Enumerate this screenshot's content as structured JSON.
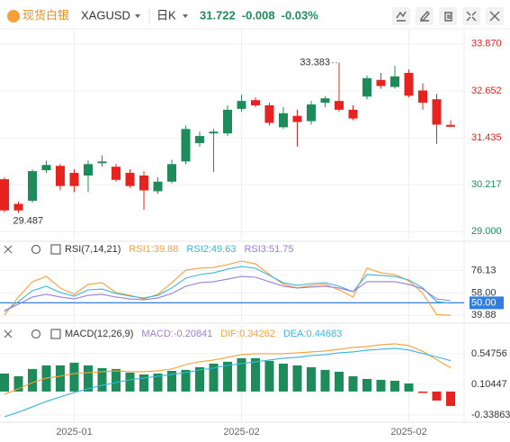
{
  "header": {
    "logo": "现货白银",
    "symbol": "XAGUSD",
    "period": "日K",
    "price": 31.722,
    "change": -0.008,
    "change_pct": "-0.03%"
  },
  "chart_data": [
    {
      "type": "candlestick",
      "categories": [
        null,
        null,
        null,
        null,
        null,
        "2025-01",
        null,
        null,
        null,
        null,
        null,
        null,
        null,
        null,
        null,
        null,
        null,
        "2025-02",
        null,
        null,
        null,
        null,
        null,
        null,
        null,
        null,
        null,
        null,
        null,
        "2025-02",
        null,
        null,
        null
      ],
      "open": [
        30.36,
        29.72,
        29.8,
        30.593,
        30.707,
        30.525,
        30.456,
        30.775,
        30.684,
        30.525,
        30.456,
        30.047,
        30.297,
        30.821,
        31.298,
        31.549,
        31.549,
        32.186,
        32.413,
        32.277,
        31.708,
        32.004,
        31.867,
        32.345,
        32.391,
        32.163,
        32.505,
        32.937,
        32.755,
        33.119,
        32.664,
        32.436,
        31.77
      ],
      "high": [
        30.41,
        29.78,
        30.616,
        30.843,
        30.752,
        30.616,
        30.843,
        30.98,
        30.752,
        30.616,
        30.57,
        30.411,
        30.866,
        31.754,
        31.594,
        31.663,
        32.277,
        32.55,
        32.482,
        32.345,
        32.231,
        32.163,
        32.391,
        32.505,
        33.383,
        32.277,
        33.051,
        33.119,
        33.301,
        33.21,
        32.846,
        32.573,
        31.89
      ],
      "low": [
        29.5,
        29.487,
        29.751,
        30.525,
        30.07,
        30.024,
        30.024,
        30.684,
        30.297,
        30.138,
        29.569,
        29.979,
        30.252,
        30.752,
        31.207,
        30.548,
        31.481,
        32.118,
        32.231,
        31.754,
        31.663,
        31.207,
        31.776,
        32.231,
        32.118,
        31.89,
        32.436,
        32.709,
        32.709,
        32.482,
        32.163,
        31.276,
        31.708
      ],
      "close": [
        29.55,
        29.55,
        30.57,
        30.73,
        30.183,
        30.183,
        30.752,
        30.82,
        30.343,
        30.183,
        30.07,
        30.297,
        30.752,
        31.663,
        31.481,
        31.594,
        32.163,
        32.391,
        32.277,
        31.822,
        32.072,
        31.845,
        32.3,
        32.459,
        32.163,
        31.936,
        32.982,
        32.778,
        33.028,
        32.527,
        32.345,
        31.776,
        31.722
      ],
      "up_color": "#1e8c5a",
      "down_color": "#e8231f",
      "ylim": [
        28.82,
        34.17
      ],
      "yticks": [
        {
          "value": 33.87,
          "label": "33.870"
        },
        32.652,
        31.435,
        30.217,
        {
          "value": 29,
          "label": "29.000"
        }
      ],
      "ytick_colors": [
        "#e8231f",
        "#e8231f",
        "#e8231f",
        "#1e8c5a",
        "#1e8c5a"
      ],
      "grid": true
    },
    {
      "type": "line",
      "title": "RSI(7,14,21)",
      "series": [
        {
          "name": "RSI1:39.88",
          "color": "#f5a03c",
          "values": [
            40.1,
            54.7,
            67.1,
            71.4,
            62.0,
            56.9,
            64.9,
            66.3,
            58.3,
            56.1,
            53.2,
            56.9,
            66.3,
            76.5,
            78.0,
            78.7,
            80.9,
            83.8,
            81.6,
            72.9,
            64.9,
            62.0,
            64.1,
            64.9,
            60.5,
            54.7,
            78.0,
            74.3,
            72.9,
            67.8,
            57.6,
            40.5,
            39.88
          ]
        },
        {
          "name": "RSI2:49.63",
          "color": "#3cb4dc",
          "values": [
            43.0,
            51.0,
            59.8,
            63.4,
            58.3,
            55.4,
            60.5,
            61.2,
            57.6,
            55.4,
            53.9,
            56.1,
            62.0,
            70.0,
            72.9,
            74.3,
            77.3,
            79.4,
            78.0,
            72.2,
            66.3,
            64.1,
            65.6,
            66.3,
            63.4,
            59.0,
            72.9,
            72.2,
            71.4,
            68.5,
            62.0,
            51.0,
            49.63
          ]
        },
        {
          "name": "RSI3:51.75",
          "color": "#9a7fd8",
          "values": [
            43.7,
            48.8,
            54.7,
            56.9,
            54.7,
            53.2,
            56.1,
            56.9,
            54.7,
            53.2,
            52.5,
            53.9,
            57.6,
            63.4,
            66.3,
            67.1,
            69.2,
            71.4,
            70.7,
            67.1,
            63.4,
            62.0,
            62.7,
            63.4,
            62.0,
            59.0,
            67.1,
            67.1,
            67.1,
            64.9,
            61.2,
            53.2,
            51.75
          ]
        }
      ],
      "ylim": [
        35,
        86
      ],
      "yticks": [
        76.13,
        {
          "value": 58,
          "label": "58.00"
        },
        {
          "value": 50,
          "label": "50.00"
        },
        39.88
      ],
      "highlight_tick": 2,
      "highlight_color": "#2f7fe0"
    },
    {
      "type": "macd",
      "title": "MACD(12,26,9)",
      "series": [
        {
          "name": "MACD:-0.20841",
          "color": "#9a7fd8",
          "up_color": "#1e8c5a",
          "down_color": "#e8231f",
          "values": [
            0.26,
            0.221,
            0.326,
            0.378,
            0.378,
            0.417,
            0.378,
            0.339,
            0.326,
            0.273,
            0.247,
            0.26,
            0.299,
            0.313,
            0.352,
            0.404,
            0.43,
            0.482,
            0.482,
            0.443,
            0.404,
            0.378,
            0.352,
            0.313,
            0.286,
            0.221,
            0.182,
            0.169,
            0.156,
            0.117,
            -0.02,
            -0.13,
            -0.20841
          ]
        },
        {
          "name": "DIF:0.34262",
          "color": "#f5a03c",
          "values": [
            -0.039,
            0.039,
            0.13,
            0.195,
            0.221,
            0.26,
            0.273,
            0.286,
            0.299,
            0.286,
            0.286,
            0.299,
            0.326,
            0.391,
            0.43,
            0.456,
            0.495,
            0.534,
            0.547,
            0.547,
            0.547,
            0.56,
            0.573,
            0.586,
            0.612,
            0.638,
            0.651,
            0.677,
            0.69,
            0.664,
            0.58,
            0.46,
            0.34262
          ]
        },
        {
          "name": "DEA:0.44683",
          "color": "#3cb4dc",
          "values": [
            -0.365,
            -0.299,
            -0.221,
            -0.143,
            -0.078,
            -0.013,
            0.039,
            0.091,
            0.13,
            0.169,
            0.195,
            0.221,
            0.247,
            0.273,
            0.313,
            0.339,
            0.378,
            0.404,
            0.43,
            0.456,
            0.482,
            0.495,
            0.521,
            0.534,
            0.56,
            0.573,
            0.599,
            0.612,
            0.625,
            0.6,
            0.55,
            0.5,
            0.44683
          ]
        }
      ],
      "ylim": [
        -0.43,
        0.91
      ],
      "yticks": [
        0.54756,
        0.10447,
        -0.33863
      ]
    }
  ]
}
